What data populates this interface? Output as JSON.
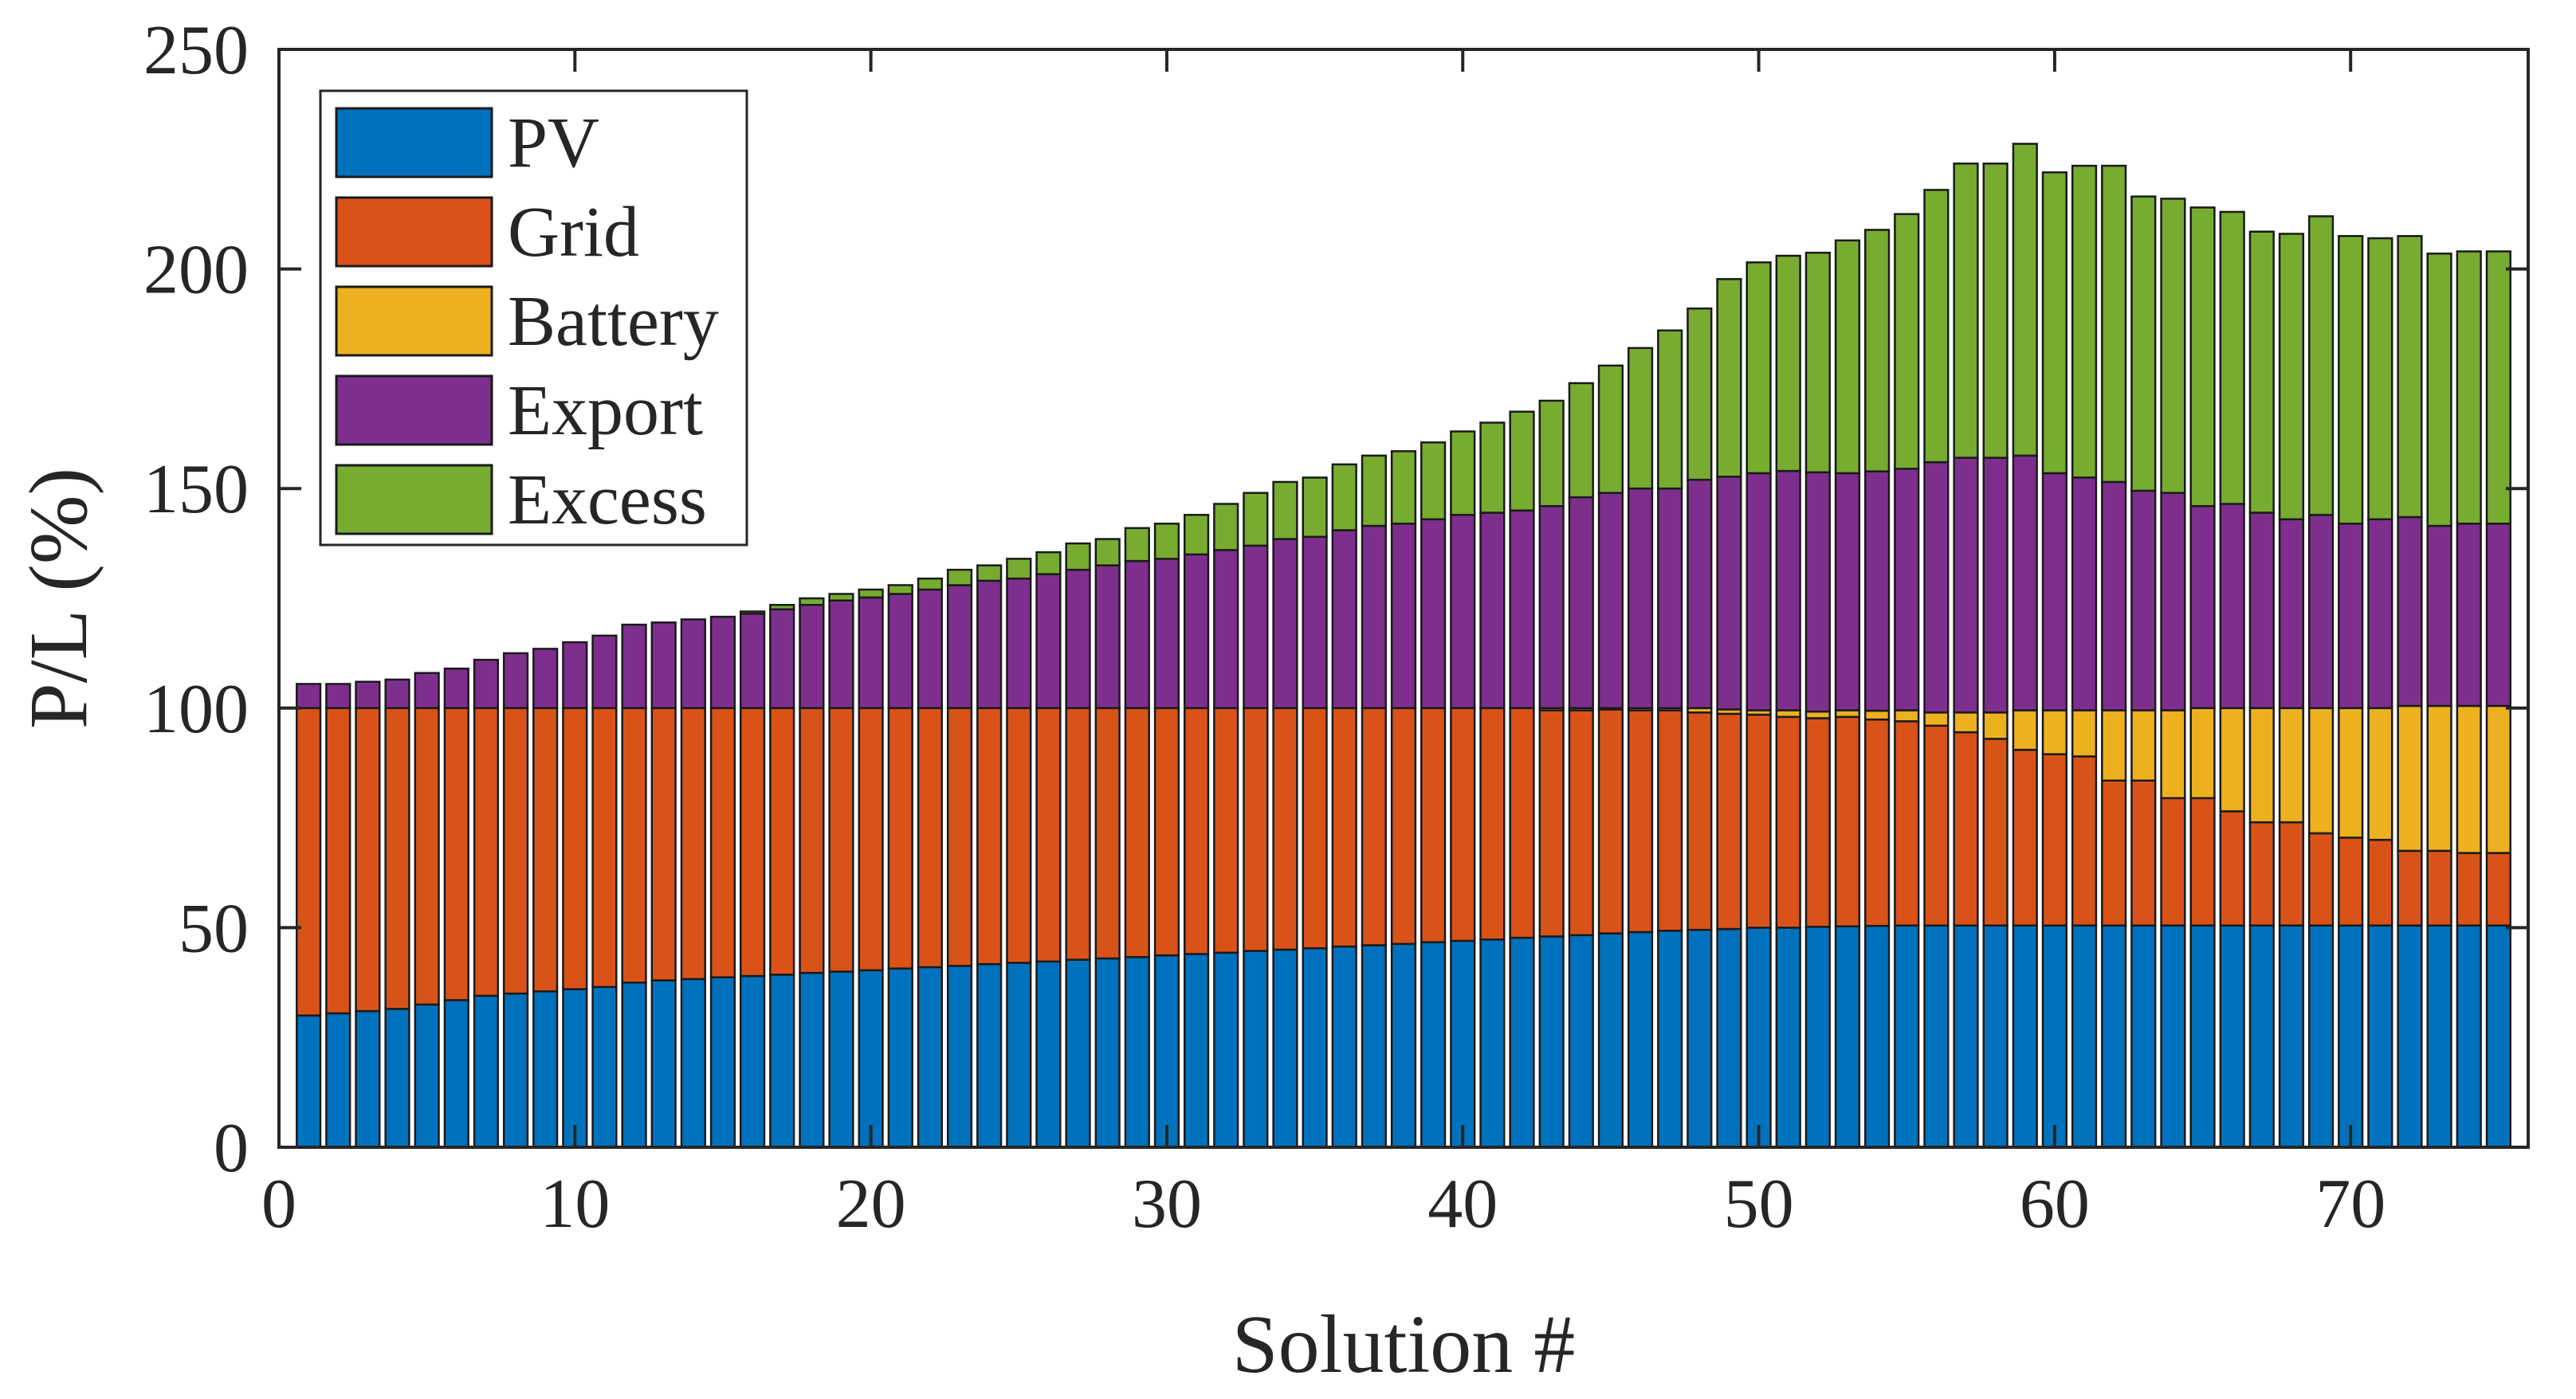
{
  "chart_data": {
    "type": "bar",
    "stacked": true,
    "title": "",
    "xlabel": "Solution #",
    "ylabel": "P/L (%)",
    "xlim": [
      0,
      76
    ],
    "ylim": [
      0,
      250
    ],
    "xticks": [
      0,
      10,
      20,
      30,
      40,
      50,
      60,
      70
    ],
    "yticks": [
      0,
      50,
      100,
      150,
      200,
      250
    ],
    "legend_position": "top-left",
    "categories": [
      1,
      2,
      3,
      4,
      5,
      6,
      7,
      8,
      9,
      10,
      11,
      12,
      13,
      14,
      15,
      16,
      17,
      18,
      19,
      20,
      21,
      22,
      23,
      24,
      25,
      26,
      27,
      28,
      29,
      30,
      31,
      32,
      33,
      34,
      35,
      36,
      37,
      38,
      39,
      40,
      41,
      42,
      43,
      44,
      45,
      46,
      47,
      48,
      49,
      50,
      51,
      52,
      53,
      54,
      55,
      56,
      57,
      58,
      59,
      60,
      61,
      62,
      63,
      64,
      65,
      66,
      67,
      68,
      69,
      70,
      71,
      72,
      73,
      74,
      75
    ],
    "series": [
      {
        "name": "PV",
        "color": "#0072BD",
        "values": [
          30,
          30.5,
          31,
          31.5,
          32.5,
          33.5,
          34.5,
          35,
          35.5,
          36,
          36.5,
          37.5,
          38,
          38.3,
          38.7,
          39,
          39.3,
          39.7,
          40,
          40.3,
          40.7,
          41,
          41.3,
          41.7,
          42,
          42.3,
          42.7,
          43,
          43.3,
          43.7,
          44,
          44.3,
          44.7,
          45,
          45.3,
          45.7,
          46,
          46.3,
          46.7,
          47,
          47.3,
          47.7,
          48,
          48.3,
          48.7,
          49,
          49.3,
          49.5,
          49.7,
          50,
          50,
          50.2,
          50.3,
          50.4,
          50.5,
          50.5,
          50.5,
          50.5,
          50.5,
          50.5,
          50.5,
          50.5,
          50.5,
          50.5,
          50.5,
          50.5,
          50.5,
          50.5,
          50.5,
          50.5,
          50.5,
          50.5,
          50.5,
          50.5,
          50.5
        ]
      },
      {
        "name": "Grid",
        "color": "#D95319",
        "values": [
          70,
          69.5,
          69,
          68.5,
          67.5,
          66.5,
          65.5,
          65,
          64.5,
          64,
          63.5,
          62.5,
          62,
          61.7,
          61.3,
          61,
          60.7,
          60.3,
          60,
          59.7,
          59.3,
          59,
          58.7,
          58.3,
          58,
          57.7,
          57.3,
          57,
          56.7,
          56.3,
          56,
          55.7,
          55.3,
          55,
          54.7,
          54.3,
          54,
          53.7,
          53.3,
          53,
          52.7,
          52.3,
          51.5,
          51.2,
          51,
          50.5,
          50.2,
          49.5,
          49,
          48.5,
          48,
          47.5,
          47.7,
          47,
          46.5,
          45.5,
          44,
          42.5,
          40,
          39,
          38.5,
          33,
          33,
          29,
          29,
          26,
          23.5,
          23.5,
          21,
          20,
          19.5,
          17,
          17,
          16.5,
          16.5
        ]
      },
      {
        "name": "Battery",
        "color": "#EDB120",
        "values": [
          0,
          0,
          0,
          0,
          0,
          0,
          0,
          0,
          0,
          0,
          0,
          0,
          0,
          0,
          0,
          0,
          0,
          0,
          0,
          0,
          0,
          0,
          0,
          0,
          0,
          0,
          0,
          0,
          0,
          0,
          0,
          0,
          0,
          0,
          0,
          0,
          0,
          0,
          0,
          0,
          0,
          0,
          0.5,
          0.5,
          0.3,
          0.5,
          0.5,
          1,
          1,
          1,
          1.5,
          1.5,
          1.5,
          2,
          2.5,
          3,
          4.5,
          6,
          9,
          10,
          10.5,
          16,
          16,
          20,
          20.5,
          23.5,
          26,
          26,
          28.5,
          29.5,
          30,
          33,
          33,
          33.5,
          33.5
        ]
      },
      {
        "name": "Export",
        "color": "#7E2F8E",
        "values": [
          5.5,
          5.5,
          6,
          6.5,
          8,
          9,
          11,
          12.5,
          13.5,
          15,
          16.5,
          19,
          19.5,
          20.2,
          20.8,
          21.5,
          22.5,
          23.5,
          24.5,
          25.2,
          26,
          27,
          28,
          29,
          29.5,
          30.5,
          31.5,
          32.5,
          33.5,
          34,
          35,
          36,
          37,
          38.5,
          39,
          40.5,
          41.5,
          42,
          43,
          44,
          44.5,
          45,
          46,
          48,
          49,
          50,
          50,
          52,
          53,
          54,
          54.5,
          54.5,
          54,
          54.5,
          55,
          57,
          58,
          58,
          58,
          54,
          53,
          52,
          50,
          49.5,
          46,
          46.5,
          44.5,
          43,
          44,
          42,
          43,
          43,
          41,
          41.5,
          41.5
        ]
      },
      {
        "name": "Excess",
        "color": "#77AC30",
        "values": [
          0,
          0,
          0,
          0,
          0,
          0,
          0,
          0,
          0,
          0,
          0,
          0,
          0,
          0,
          0,
          0.5,
          1,
          1.5,
          1.5,
          1.8,
          2,
          2.5,
          3.5,
          3.5,
          4.5,
          5,
          6,
          6,
          7.5,
          8,
          9,
          10.5,
          12,
          13,
          13.5,
          15,
          16,
          16.5,
          17.5,
          19,
          20.5,
          22.5,
          24,
          26,
          29,
          32,
          36,
          39,
          45,
          48,
          49,
          50,
          53,
          55,
          58,
          62,
          67,
          67,
          71,
          68.5,
          71,
          72,
          67,
          67,
          68,
          66.5,
          64,
          65,
          68,
          65.5,
          64,
          64,
          62,
          62,
          62
        ]
      }
    ]
  }
}
